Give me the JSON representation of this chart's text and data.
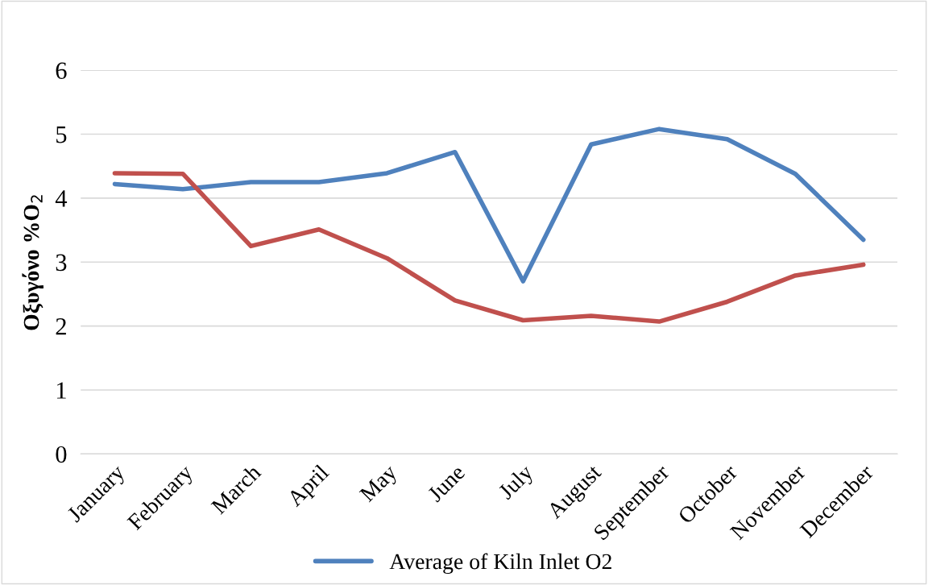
{
  "chart_data": {
    "type": "line",
    "ylabel": "Οξυγόνο %O$_{2}$",
    "categories": [
      "January",
      "February",
      "March",
      "April",
      "May",
      "June",
      "July",
      "August",
      "September",
      "October",
      "November",
      "December"
    ],
    "series": [
      {
        "name": "Average of Kiln Inlet O2",
        "color": "#4f81bd",
        "values": [
          4.22,
          4.14,
          4.25,
          4.25,
          4.39,
          4.72,
          2.7,
          4.84,
          5.08,
          4.92,
          4.38,
          3.35
        ]
      },
      {
        "color": "#c0504d",
        "values": [
          4.39,
          4.38,
          3.25,
          3.51,
          3.06,
          2.4,
          2.09,
          2.16,
          2.07,
          2.38,
          2.79,
          2.96
        ]
      }
    ],
    "ylim": [
      0,
      6
    ],
    "yticks": [
      0,
      1,
      2,
      3,
      4,
      5,
      6
    ],
    "grid": "y",
    "legend": "bottom",
    "marker": "none",
    "line_style": "solid"
  }
}
